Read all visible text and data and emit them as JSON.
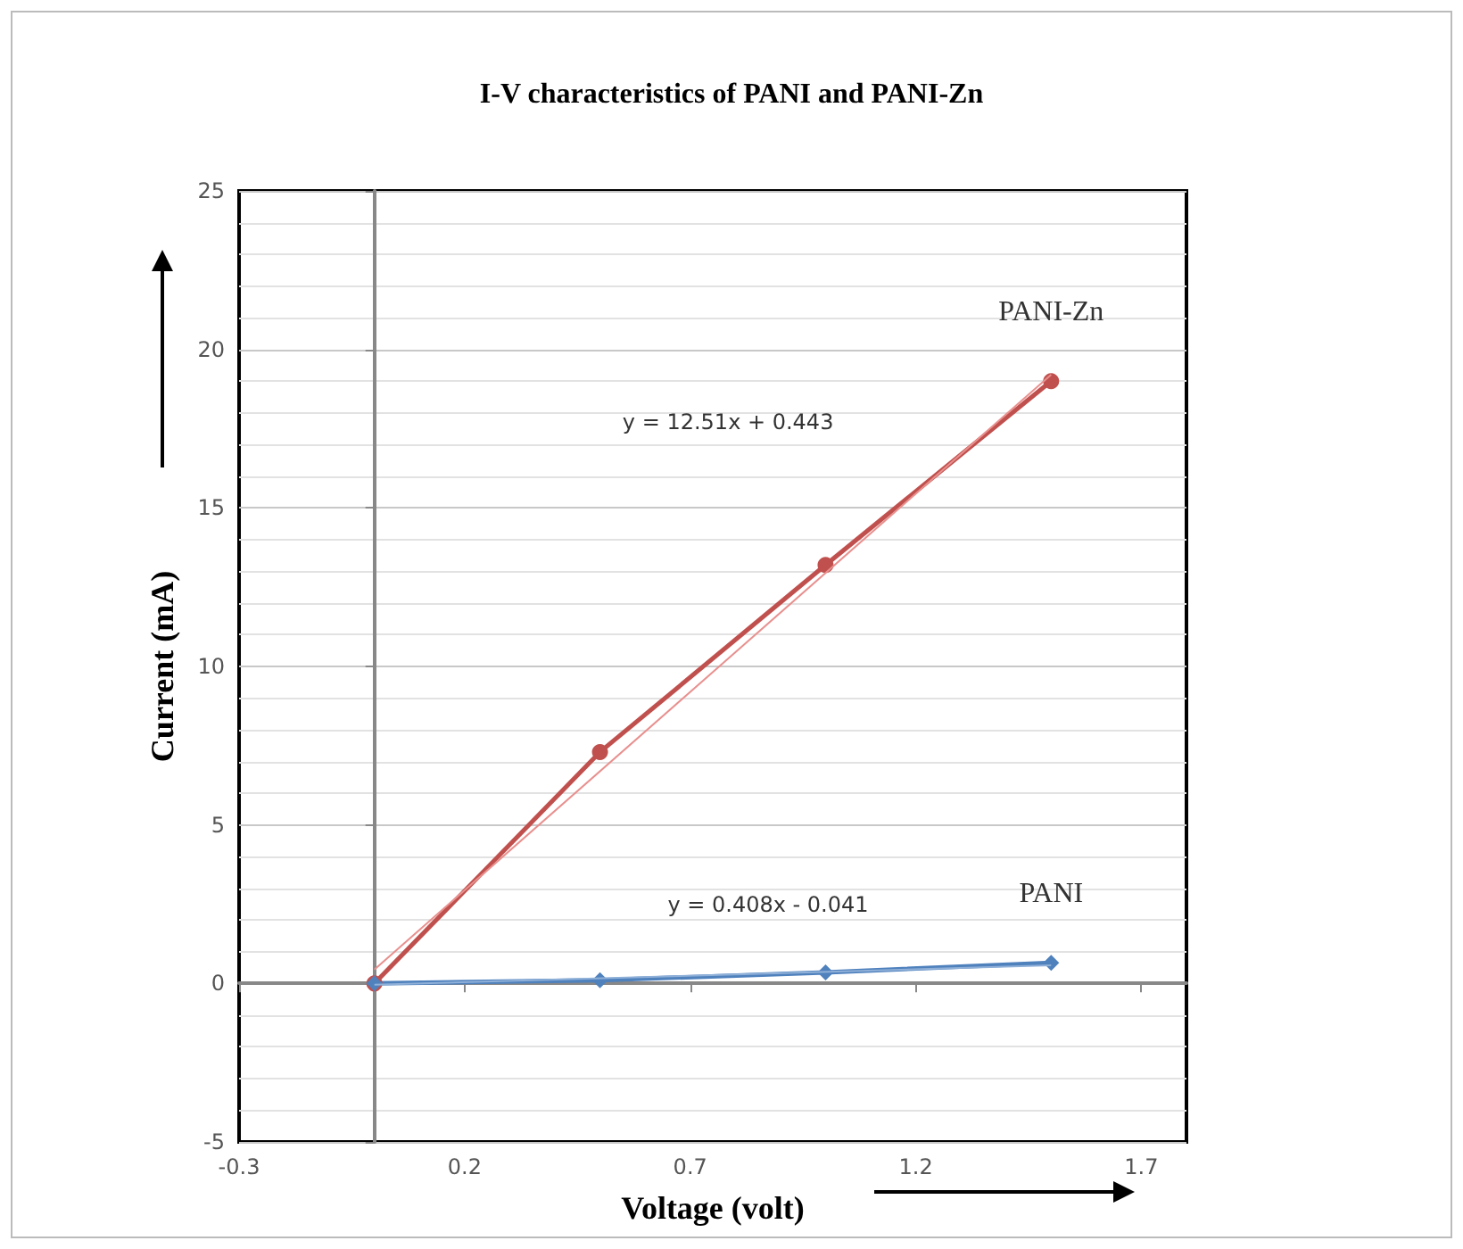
{
  "chart_data": {
    "type": "line",
    "title": "I-V characteristics of PANI and PANI-Zn",
    "xlabel": "Voltage (volt)",
    "ylabel": "Current (mA)",
    "xlim": [
      -0.3,
      1.8
    ],
    "xticks": [
      -0.3,
      0.2,
      0.7,
      1.2,
      1.7
    ],
    "ylim": [
      -5,
      25
    ],
    "yticks": [
      -5,
      0,
      5,
      10,
      15,
      20,
      25
    ],
    "grid": "y",
    "legend": false,
    "series": [
      {
        "name": "PANI-Zn",
        "color": "#c0504d",
        "marker": "circle",
        "x": [
          0,
          0.5,
          1.0,
          1.5
        ],
        "values": [
          0,
          7.3,
          13.2,
          19.0
        ]
      },
      {
        "name": "PANI",
        "color": "#4f81bd",
        "marker": "diamond",
        "x": [
          0,
          0.5,
          1.0,
          1.5
        ],
        "values": [
          0,
          0.1,
          0.35,
          0.65
        ]
      },
      {
        "color": "#e8908e",
        "marker": "none",
        "x": [
          0,
          1.5
        ],
        "values": [
          0.44,
          19.2
        ]
      },
      {
        "color": "#8fb0d8",
        "marker": "none",
        "x": [
          0,
          1.5
        ],
        "values": [
          -0.04,
          0.57
        ]
      }
    ],
    "annotations": [
      "y = 12.51x + 0.443",
      "y = 0.408x - 0.041"
    ]
  }
}
